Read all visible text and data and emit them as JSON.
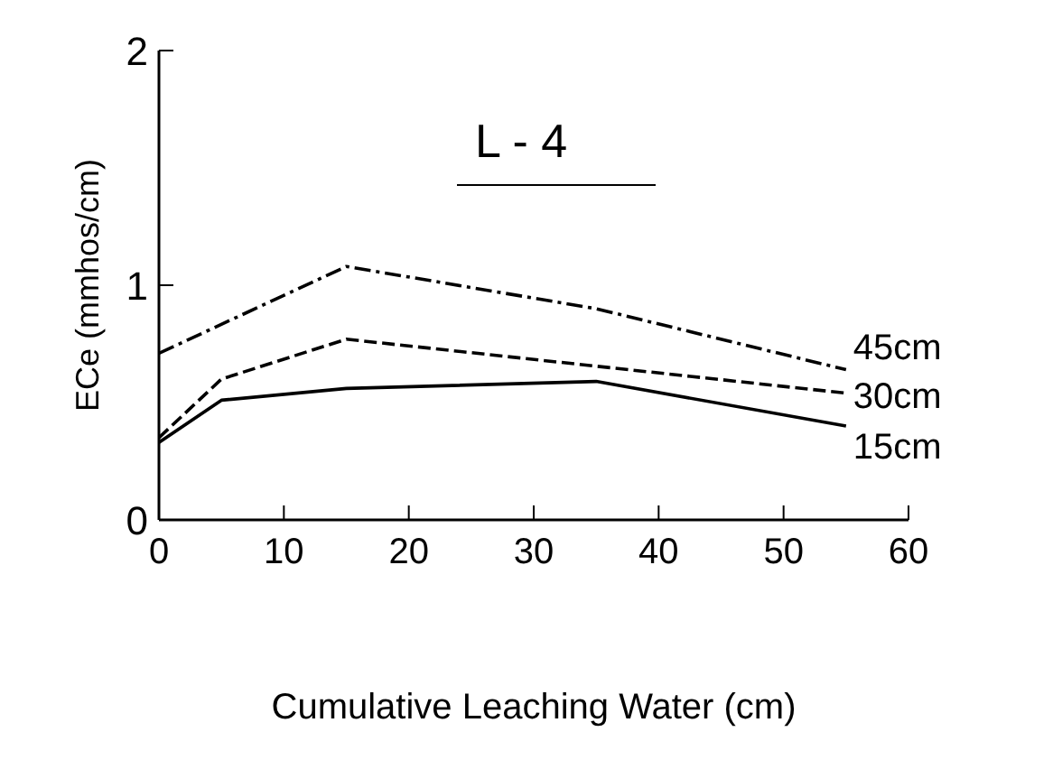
{
  "chart_data": {
    "type": "line",
    "title": "L - 4",
    "xlabel": "Cumulative Leaching Water (cm)",
    "ylabel": "ECe (mmhos/cm)",
    "xlim": [
      0,
      60
    ],
    "xticks": [
      0,
      10,
      20,
      30,
      40,
      50,
      60
    ],
    "ylim": [
      0,
      2
    ],
    "yticks": [
      0,
      1,
      2
    ],
    "grid": false,
    "legend": false,
    "marker": "none",
    "series": [
      {
        "name": "45cm",
        "color": "#000000",
        "line_style": "dashdot",
        "x": [
          0,
          15,
          35,
          55
        ],
        "values": [
          0.71,
          1.08,
          0.9,
          0.64
        ]
      },
      {
        "name": "30cm",
        "color": "#000000",
        "line_style": "dashed",
        "x": [
          0,
          5,
          15,
          55
        ],
        "values": [
          0.35,
          0.6,
          0.77,
          0.54
        ]
      },
      {
        "name": "15cm",
        "color": "#000000",
        "line_style": "solid",
        "x": [
          0,
          5,
          15,
          35,
          55
        ],
        "values": [
          0.33,
          0.51,
          0.56,
          0.59,
          0.4
        ]
      }
    ]
  }
}
